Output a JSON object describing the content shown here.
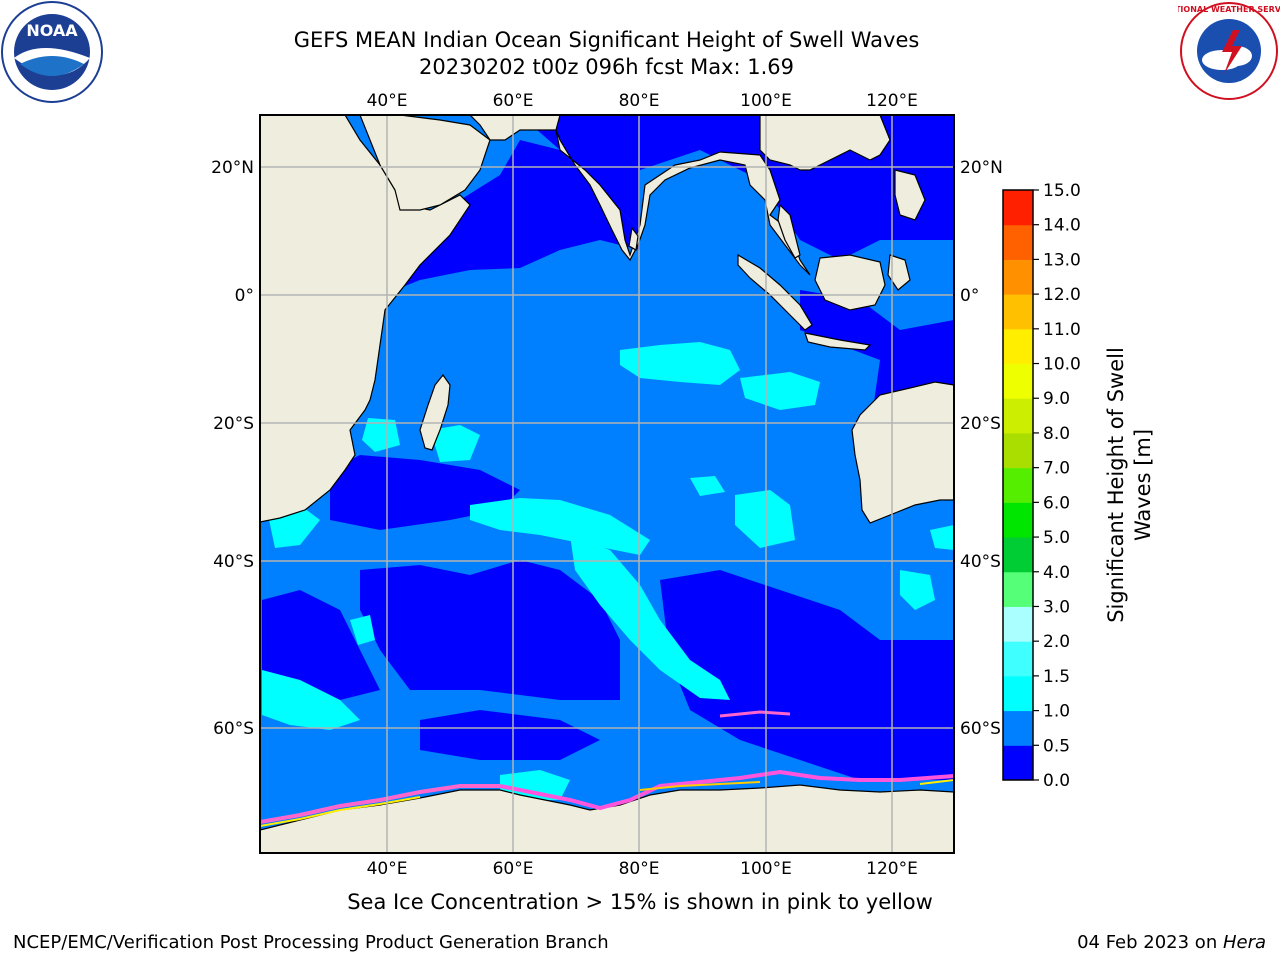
{
  "title_line1": "GEFS MEAN Indian Ocean Significant Height of Swell Waves",
  "title_line2": "20230202 t00z 096h fcst   Max: 1.69",
  "caption": "Sea Ice Concentration > 15% is shown in pink to yellow",
  "footer_left": "NCEP/EMC/Verification Post Processing Product Generation Branch",
  "footer_right_prefix": "04 Feb 2023 on ",
  "footer_right_host": "Hera",
  "logos": {
    "left": "noaa-logo",
    "right": "national-weather-service-logo"
  },
  "logo_text": {
    "noaa": "NOAA",
    "nws": "NATIONAL WEATHER SERVICE"
  },
  "map": {
    "lon_labels": [
      "40°E",
      "60°E",
      "80°E",
      "100°E",
      "120°E"
    ],
    "lat_labels_left": [
      "20°N",
      "0°",
      "20°S",
      "40°S",
      "60°S"
    ],
    "lat_labels_right": [
      "20°N",
      "0°",
      "20°S",
      "40°S",
      "60°S"
    ],
    "colors": {
      "land": "#efeede",
      "ocean_base": "#0080ff",
      "grid": "#b3b3b3"
    }
  },
  "colorbar": {
    "title_line1": "Significant Height of Swell",
    "title_line2": "Waves [m]",
    "levels": [
      "0.0",
      "0.5",
      "1.0",
      "1.5",
      "2.0",
      "3.0",
      "4.0",
      "5.0",
      "6.0",
      "7.0",
      "8.0",
      "9.0",
      "10.0",
      "11.0",
      "12.0",
      "13.0",
      "14.0",
      "15.0"
    ],
    "colors": [
      "#0000ff",
      "#0080ff",
      "#00ffff",
      "#40ffff",
      "#aaffff",
      "#55ff77",
      "#00cc33",
      "#00e600",
      "#55ee00",
      "#aadd00",
      "#ccee00",
      "#eeff00",
      "#ffee00",
      "#ffc000",
      "#ff9000",
      "#ff6000",
      "#ff2000",
      "#ff0000"
    ]
  }
}
